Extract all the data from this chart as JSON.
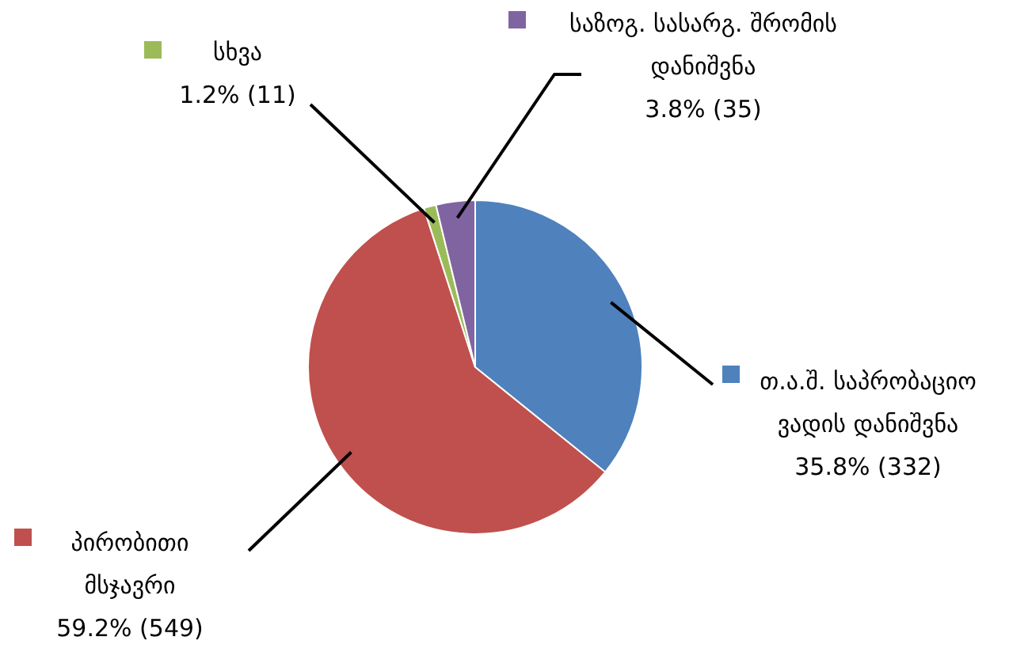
{
  "chart_data": {
    "type": "pie",
    "categories": [
      "თ.ა.შ. საპრობაციო ვადის დანიშვნა",
      "პირობითი მსჯავრი",
      "სხვა",
      "საზოგ. სასარგ. შრომის დანიშვნა"
    ],
    "values": [
      332,
      549,
      11,
      35
    ],
    "colors": [
      "#4f81bd",
      "#c0504d",
      "#9bbb59",
      "#8064a2"
    ],
    "legend": "right",
    "value_labels": [
      "35.8% (332)",
      "59.2% (549)",
      "1.2% (11)",
      "3.8% (35)"
    ]
  }
}
